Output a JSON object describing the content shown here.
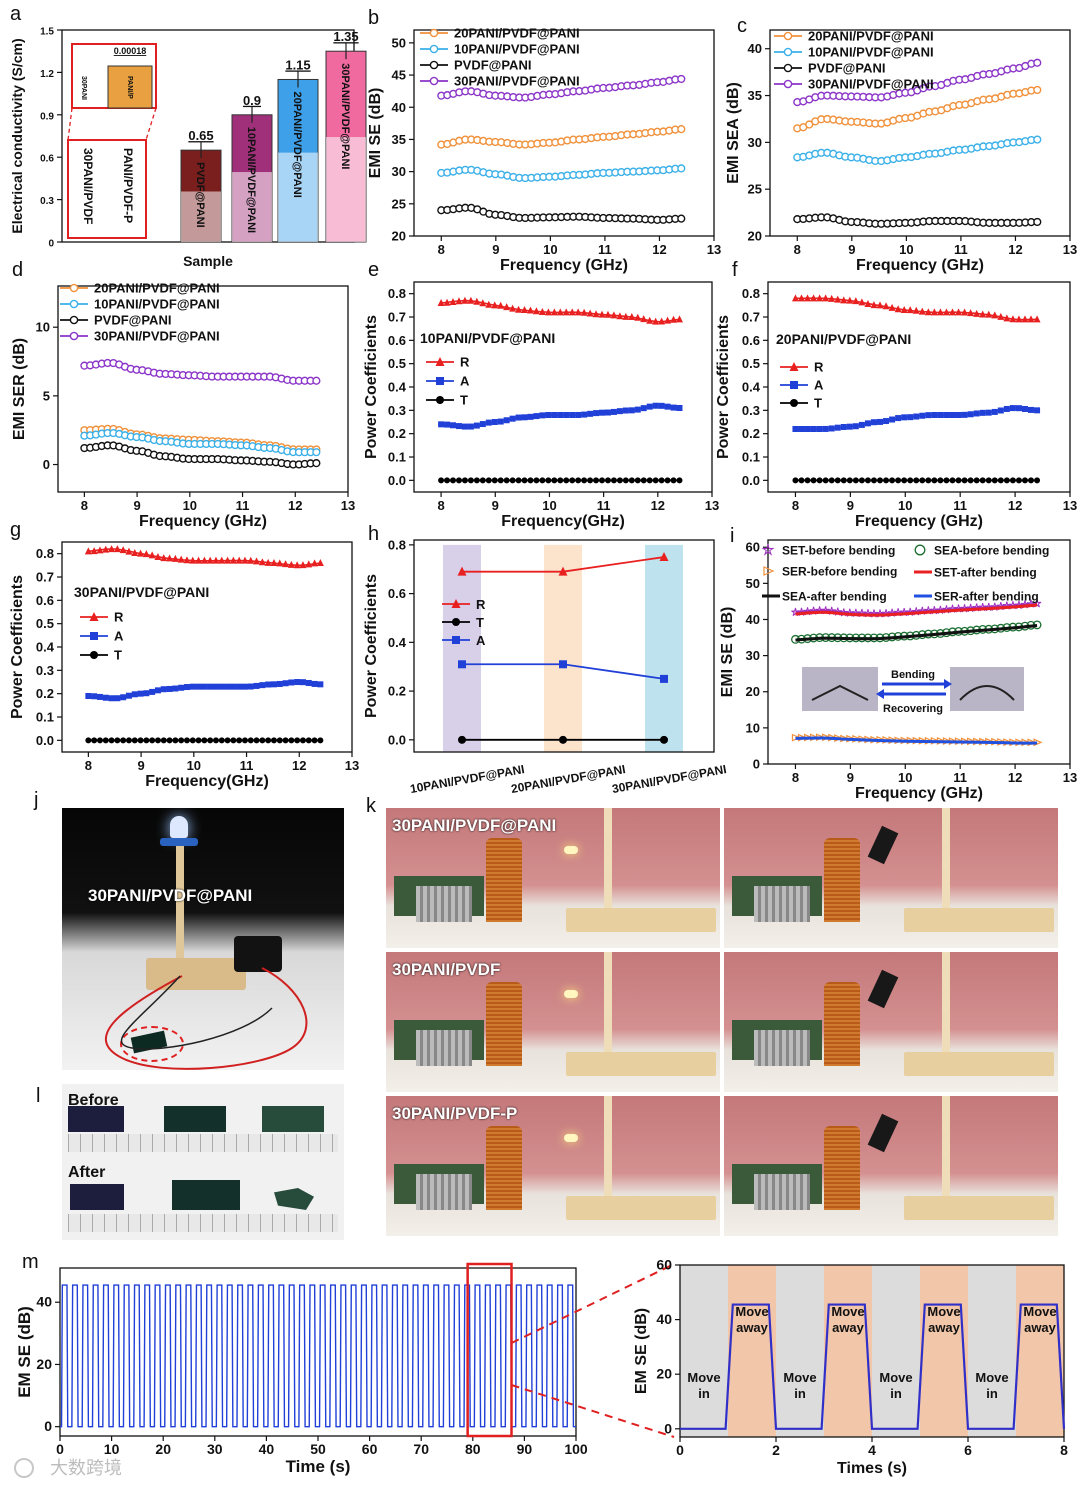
{
  "watermark": "大数跨境",
  "panels": {
    "a": {
      "letter": "a"
    },
    "b": {
      "letter": "b"
    },
    "c": {
      "letter": "c"
    },
    "d": {
      "letter": "d"
    },
    "e": {
      "letter": "e"
    },
    "f": {
      "letter": "f"
    },
    "g": {
      "letter": "g"
    },
    "h": {
      "letter": "h"
    },
    "i": {
      "letter": "i"
    },
    "j": {
      "letter": "j"
    },
    "k": {
      "letter": "k"
    },
    "l": {
      "letter": "l"
    },
    "m": {
      "letter": "m"
    }
  },
  "chart_data": [
    {
      "id": "a",
      "type": "bar",
      "title": "",
      "xlabel": "Sample",
      "ylabel": "Electrical conductivity (S/cm)",
      "ylim": [
        0,
        1.5
      ],
      "yticks": [
        "0",
        "0.3",
        "0.6",
        "0.9",
        "1.2",
        "1.5"
      ],
      "categories": [
        "30PANI/PVDF",
        "PANI/PVDF-P",
        "PVDF@PANI",
        "10PANI/PVDF@PANI",
        "20PANI/PVDF@PANI",
        "30PANI/PVDF@PANI"
      ],
      "values": [
        0,
        0.00018,
        0.65,
        0.9,
        1.15,
        1.35
      ],
      "value_labels": [
        "",
        "",
        "0.65",
        "0.9",
        "1.15",
        "1.35"
      ],
      "colors": [
        "#ffffff",
        "#e8a040",
        "#7a1e1e",
        "#a0307a",
        "#3ea0e8",
        "#f06aa0"
      ],
      "inset": {
        "categories": [
          "30PANI",
          "PANI/P"
        ],
        "values": [
          0,
          0.00018
        ],
        "value_label": "0.00018"
      }
    },
    {
      "id": "b",
      "type": "line",
      "xlabel": "Frequency (GHz)",
      "ylabel": "EMI SE (dB)",
      "xlim": [
        7.5,
        13
      ],
      "ylim": [
        20,
        52
      ],
      "xticks": [
        "8",
        "9",
        "10",
        "11",
        "12",
        "13"
      ],
      "yticks": [
        "20",
        "25",
        "30",
        "35",
        "40",
        "45",
        "50"
      ],
      "x": [
        8.0,
        8.5,
        9.0,
        9.5,
        10.0,
        10.5,
        11.0,
        11.5,
        12.0,
        12.4
      ],
      "series": [
        {
          "name": "20PANI/PVDF@PANI",
          "color": "#f0903a",
          "values": [
            34.2,
            35.0,
            34.6,
            34.2,
            34.5,
            35.0,
            35.4,
            35.8,
            36.2,
            36.6
          ]
        },
        {
          "name": "10PANI/PVDF@PANI",
          "color": "#3ab0e8",
          "values": [
            29.8,
            30.3,
            29.6,
            29.0,
            29.2,
            29.5,
            29.8,
            30.0,
            30.2,
            30.5
          ]
        },
        {
          "name": "PVDF@PANI",
          "color": "#111111",
          "values": [
            24.0,
            24.4,
            23.3,
            22.8,
            22.9,
            23.0,
            22.8,
            22.7,
            22.5,
            22.7
          ]
        },
        {
          "name": "30PANI/PVDF@PANI",
          "color": "#8b35c8",
          "values": [
            41.8,
            42.5,
            41.8,
            41.5,
            42.0,
            42.5,
            43.0,
            43.4,
            43.9,
            44.4
          ]
        }
      ]
    },
    {
      "id": "c",
      "type": "line",
      "xlabel": "Frequency (GHz)",
      "ylabel": "EMI SEA (dB)",
      "xlim": [
        7.5,
        13
      ],
      "ylim": [
        20,
        42
      ],
      "xticks": [
        "8",
        "9",
        "10",
        "11",
        "12",
        "13"
      ],
      "yticks": [
        "20",
        "25",
        "30",
        "35",
        "40"
      ],
      "x": [
        8.0,
        8.5,
        9.0,
        9.5,
        10.0,
        10.5,
        11.0,
        11.5,
        12.0,
        12.4
      ],
      "series": [
        {
          "name": "20PANI/PVDF@PANI",
          "color": "#f0903a",
          "values": [
            31.5,
            32.5,
            32.2,
            32.0,
            32.6,
            33.3,
            34.0,
            34.6,
            35.2,
            35.6
          ]
        },
        {
          "name": "10PANI/PVDF@PANI",
          "color": "#3ab0e8",
          "values": [
            28.4,
            28.9,
            28.4,
            28.0,
            28.4,
            28.8,
            29.2,
            29.6,
            30.0,
            30.3
          ]
        },
        {
          "name": "PVDF@PANI",
          "color": "#111111",
          "values": [
            21.8,
            22.0,
            21.5,
            21.3,
            21.4,
            21.6,
            21.6,
            21.4,
            21.4,
            21.5
          ]
        },
        {
          "name": "30PANI/PVDF@PANI",
          "color": "#8b35c8",
          "values": [
            34.3,
            35.0,
            34.9,
            34.8,
            35.3,
            36.0,
            36.7,
            37.3,
            37.9,
            38.5
          ]
        }
      ]
    },
    {
      "id": "d",
      "type": "line",
      "xlabel": "Frequency (GHz)",
      "ylabel": "EMI SER (dB)",
      "xlim": [
        7.5,
        13
      ],
      "ylim": [
        -2,
        13
      ],
      "xticks": [
        "8",
        "9",
        "10",
        "11",
        "12",
        "13"
      ],
      "yticks": [
        "0",
        "5",
        "10"
      ],
      "x": [
        8.0,
        8.5,
        9.0,
        9.5,
        10.0,
        10.5,
        11.0,
        11.5,
        12.0,
        12.4
      ],
      "series": [
        {
          "name": "20PANI/PVDF@PANI",
          "color": "#f0903a",
          "values": [
            2.5,
            2.6,
            2.2,
            1.9,
            1.8,
            1.7,
            1.6,
            1.4,
            1.1,
            1.1
          ]
        },
        {
          "name": "10PANI/PVDF@PANI",
          "color": "#3ab0e8",
          "values": [
            2.1,
            2.3,
            2.0,
            1.7,
            1.5,
            1.5,
            1.4,
            1.2,
            0.9,
            0.9
          ]
        },
        {
          "name": "PVDF@PANI",
          "color": "#111111",
          "values": [
            1.2,
            1.4,
            1.0,
            0.6,
            0.4,
            0.4,
            0.3,
            0.2,
            0.0,
            0.1
          ]
        },
        {
          "name": "30PANI/PVDF@PANI",
          "color": "#8b35c8",
          "values": [
            7.2,
            7.4,
            6.9,
            6.6,
            6.5,
            6.4,
            6.4,
            6.4,
            6.1,
            6.1
          ]
        }
      ]
    },
    {
      "id": "e",
      "type": "line",
      "xlabel": "Frequency(GHz)",
      "ylabel": "Power Coefficients",
      "annotation": "10PANI/PVDF@PANI",
      "xlim": [
        7.5,
        13
      ],
      "ylim": [
        -0.05,
        0.85
      ],
      "xticks": [
        "8",
        "9",
        "10",
        "11",
        "12",
        "13"
      ],
      "yticks": [
        "0.0",
        "0.1",
        "0.2",
        "0.3",
        "0.4",
        "0.5",
        "0.6",
        "0.7",
        "0.8"
      ],
      "x": [
        8.0,
        8.5,
        9.0,
        9.5,
        10.0,
        10.5,
        11.0,
        11.5,
        12.0,
        12.4
      ],
      "series": [
        {
          "name": "R",
          "color": "#e82020",
          "marker": "triangle",
          "values": [
            0.76,
            0.77,
            0.75,
            0.73,
            0.72,
            0.72,
            0.71,
            0.7,
            0.68,
            0.69
          ]
        },
        {
          "name": "A",
          "color": "#2040d8",
          "marker": "square",
          "values": [
            0.24,
            0.23,
            0.25,
            0.27,
            0.28,
            0.28,
            0.29,
            0.3,
            0.32,
            0.31
          ]
        },
        {
          "name": "T",
          "color": "#000000",
          "marker": "circle",
          "values": [
            0,
            0,
            0,
            0,
            0,
            0,
            0,
            0,
            0,
            0
          ]
        }
      ]
    },
    {
      "id": "f",
      "type": "line",
      "xlabel": "Frequency (GHz)",
      "ylabel": "Power Coefficients",
      "annotation": "20PANI/PVDF@PANI",
      "xlim": [
        7.5,
        13
      ],
      "ylim": [
        -0.05,
        0.85
      ],
      "xticks": [
        "8",
        "9",
        "10",
        "11",
        "12",
        "13"
      ],
      "yticks": [
        "0.0",
        "0.1",
        "0.2",
        "0.3",
        "0.4",
        "0.5",
        "0.6",
        "0.7",
        "0.8"
      ],
      "x": [
        8.0,
        8.5,
        9.0,
        9.5,
        10.0,
        10.5,
        11.0,
        11.5,
        12.0,
        12.4
      ],
      "series": [
        {
          "name": "R",
          "color": "#e82020",
          "marker": "triangle",
          "values": [
            0.78,
            0.78,
            0.77,
            0.75,
            0.73,
            0.72,
            0.72,
            0.71,
            0.69,
            0.69
          ]
        },
        {
          "name": "A",
          "color": "#2040d8",
          "marker": "square",
          "values": [
            0.22,
            0.22,
            0.23,
            0.25,
            0.27,
            0.28,
            0.28,
            0.29,
            0.31,
            0.3
          ]
        },
        {
          "name": "T",
          "color": "#000000",
          "marker": "circle",
          "values": [
            0,
            0,
            0,
            0,
            0,
            0,
            0,
            0,
            0,
            0
          ]
        }
      ]
    },
    {
      "id": "g",
      "type": "line",
      "xlabel": "Frequency(GHz)",
      "ylabel": "Power Coefficients",
      "annotation": "30PANI/PVDF@PANI",
      "xlim": [
        7.5,
        13
      ],
      "ylim": [
        -0.05,
        0.85
      ],
      "xticks": [
        "8",
        "9",
        "10",
        "11",
        "12",
        "13"
      ],
      "yticks": [
        "0.0",
        "0.1",
        "0.2",
        "0.3",
        "0.4",
        "0.5",
        "0.6",
        "0.7",
        "0.8"
      ],
      "x": [
        8.0,
        8.5,
        9.0,
        9.5,
        10.0,
        10.5,
        11.0,
        11.5,
        12.0,
        12.4
      ],
      "series": [
        {
          "name": "R",
          "color": "#e82020",
          "marker": "triangle",
          "values": [
            0.81,
            0.82,
            0.8,
            0.78,
            0.77,
            0.77,
            0.77,
            0.76,
            0.75,
            0.76
          ]
        },
        {
          "name": "A",
          "color": "#2040d8",
          "marker": "square",
          "values": [
            0.19,
            0.18,
            0.2,
            0.22,
            0.23,
            0.23,
            0.23,
            0.24,
            0.25,
            0.24
          ]
        },
        {
          "name": "T",
          "color": "#000000",
          "marker": "circle",
          "values": [
            0,
            0,
            0,
            0,
            0,
            0,
            0,
            0,
            0,
            0
          ]
        }
      ]
    },
    {
      "id": "h",
      "type": "line",
      "xlabel": "",
      "ylabel": "Power Coefficients",
      "categories": [
        "10PANI/PVDF@PANI",
        "20PANI/PVDF@PANI",
        "30PANI/PVDF@PANI"
      ],
      "band_colors": [
        "#d8cfe8",
        "#fbe3cc",
        "#bfe3ee"
      ],
      "ylim": [
        -0.05,
        0.82
      ],
      "yticks": [
        "0.0",
        "0.2",
        "0.4",
        "0.6",
        "0.8"
      ],
      "series": [
        {
          "name": "R",
          "color": "#e82020",
          "marker": "triangle",
          "values": [
            0.69,
            0.69,
            0.75
          ]
        },
        {
          "name": "T",
          "color": "#000000",
          "marker": "circle",
          "values": [
            0,
            0,
            0
          ]
        },
        {
          "name": "A",
          "color": "#2040d8",
          "marker": "square",
          "values": [
            0.31,
            0.31,
            0.25
          ]
        }
      ]
    },
    {
      "id": "i",
      "type": "line",
      "xlabel": "Frequency (GHz)",
      "ylabel": "EMI SE (dB)",
      "xlim": [
        7.5,
        13
      ],
      "ylim": [
        0,
        62
      ],
      "xticks": [
        "8",
        "9",
        "10",
        "11",
        "12",
        "13"
      ],
      "yticks": [
        "0",
        "10",
        "20",
        "30",
        "40",
        "50",
        "60"
      ],
      "x": [
        8.0,
        8.5,
        9.0,
        9.5,
        10.0,
        10.5,
        11.0,
        11.5,
        12.0,
        12.4
      ],
      "legend": [
        "SET-before bending",
        "SEA-before bending",
        "SER-before bending",
        "SET-after bending",
        "SEA-after bending",
        "SER-after bending"
      ],
      "inset_labels": {
        "top": "Bending",
        "bottom": "Recovering"
      },
      "series": [
        {
          "name": "SET-before bending",
          "color": "#a030c0",
          "marker": "star",
          "values": [
            42.0,
            42.5,
            41.8,
            41.6,
            42.0,
            42.5,
            43.0,
            43.4,
            43.9,
            44.4
          ]
        },
        {
          "name": "SEA-before bending",
          "color": "#1a6e30",
          "marker": "hollow-circle",
          "values": [
            34.5,
            35.0,
            34.9,
            34.9,
            35.4,
            36.0,
            36.7,
            37.3,
            37.9,
            38.5
          ]
        },
        {
          "name": "SER-before bending",
          "color": "#f0903a",
          "marker": "hollow-triangle",
          "values": [
            7.3,
            7.4,
            7.0,
            6.7,
            6.5,
            6.4,
            6.3,
            6.2,
            6.0,
            6.0
          ]
        },
        {
          "name": "SET-after bending",
          "color": "#e82020",
          "marker": "none",
          "values": [
            41.5,
            42.0,
            41.4,
            41.2,
            41.6,
            42.1,
            42.6,
            43.0,
            43.5,
            44.0
          ]
        },
        {
          "name": "SEA-after bending",
          "color": "#111111",
          "marker": "none",
          "values": [
            34.3,
            34.8,
            34.7,
            34.7,
            35.2,
            35.8,
            36.5,
            37.1,
            37.7,
            38.3
          ]
        },
        {
          "name": "SER-after bending",
          "color": "#2050e0",
          "marker": "none",
          "values": [
            7.1,
            7.2,
            6.8,
            6.5,
            6.3,
            6.2,
            6.1,
            6.0,
            5.8,
            5.8
          ]
        }
      ]
    },
    {
      "id": "m1",
      "type": "line",
      "xlabel": "Time (s)",
      "ylabel": "EM SE (dB)",
      "xlim": [
        0,
        100
      ],
      "ylim": [
        -3,
        51
      ],
      "xticks": [
        "0",
        "10",
        "20",
        "30",
        "40",
        "50",
        "60",
        "70",
        "80",
        "90",
        "100"
      ],
      "yticks": [
        "0",
        "20",
        "40"
      ],
      "series": [
        {
          "name": "EM SE",
          "color": "#2040d8",
          "period_s": 2,
          "high": 45.5,
          "low": 0
        }
      ],
      "highlight_range": [
        79,
        87.5
      ]
    },
    {
      "id": "m2",
      "type": "line",
      "xlabel": "Times (s)",
      "ylabel": "EM SE (dB)",
      "xlim": [
        0,
        8
      ],
      "ylim": [
        -3,
        60
      ],
      "xticks": [
        "0",
        "2",
        "4",
        "6",
        "8"
      ],
      "yticks": [
        "0",
        "20",
        "40",
        "60"
      ],
      "series": [
        {
          "name": "EM SE",
          "color": "#3030c8",
          "high": 45.5,
          "low": 0
        }
      ],
      "bands": [
        {
          "label": "Move in",
          "color": "#dcdcdc"
        },
        {
          "label": "Move away",
          "color": "#f2c6a8"
        },
        {
          "label": "Move in",
          "color": "#dcdcdc"
        },
        {
          "label": "Move away",
          "color": "#f2c6a8"
        },
        {
          "label": "Move in",
          "color": "#dcdcdc"
        },
        {
          "label": "Move away",
          "color": "#f2c6a8"
        },
        {
          "label": "Move in",
          "color": "#dcdcdc"
        },
        {
          "label": "Move away",
          "color": "#f2c6a8"
        }
      ]
    }
  ],
  "photos": {
    "j": {
      "label": "30PANI/PVDF@PANI"
    },
    "k": {
      "labels": [
        "30PANI/PVDF@PANI",
        "30PANI/PVDF",
        "30PANI/PVDF-P"
      ]
    },
    "l": {
      "before": "Before",
      "after": "After"
    }
  }
}
